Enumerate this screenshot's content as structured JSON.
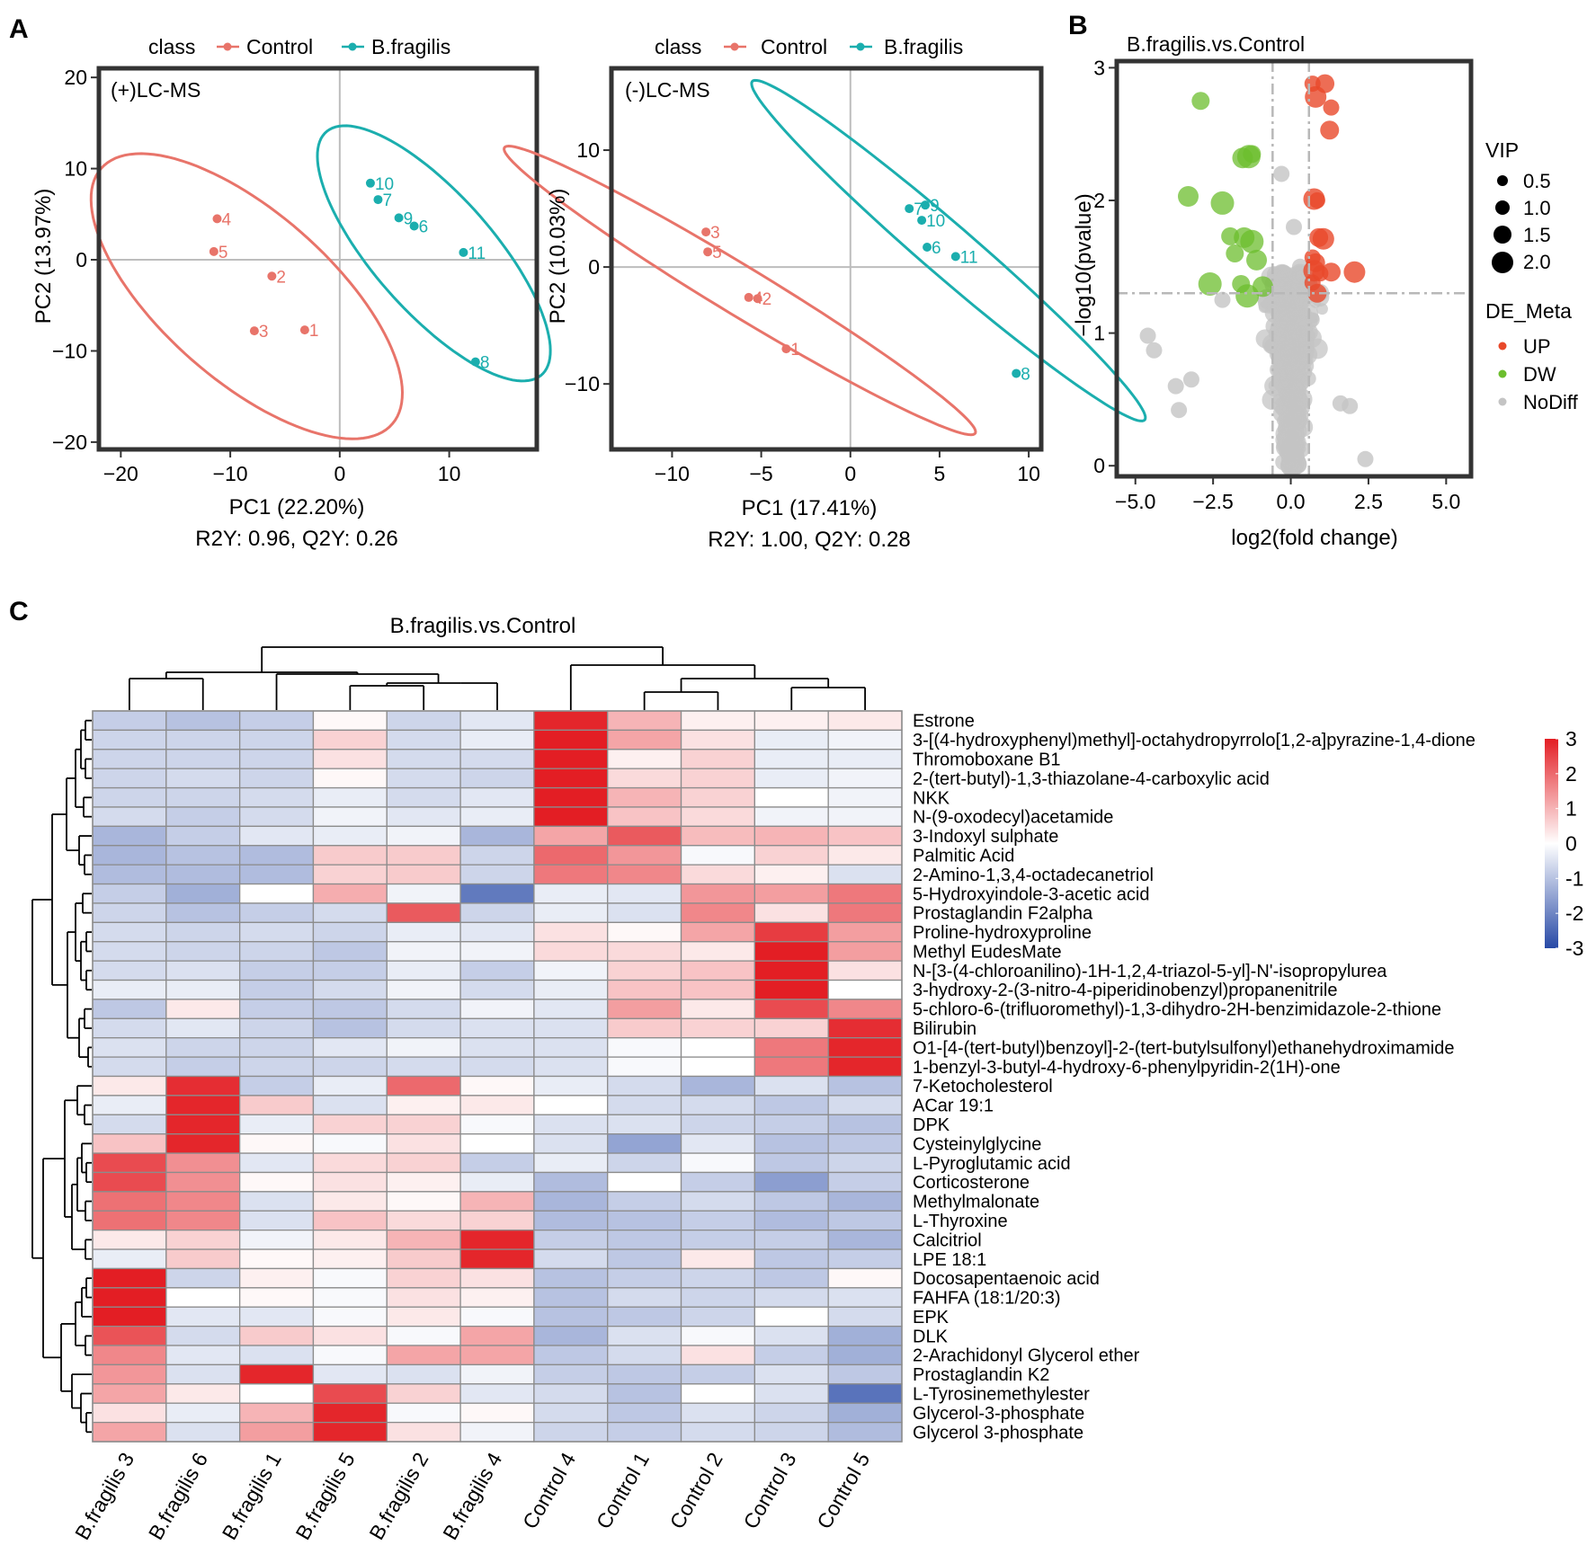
{
  "panel_labels": {
    "a": "A",
    "b": "B",
    "c": "C"
  },
  "colors": {
    "control": "#E8746A",
    "bfragilis": "#1BAEAE",
    "up": "#E8492A",
    "dw": "#6CBE2E",
    "nodiff": "#C4C4C4",
    "guide": "#B8B8B8",
    "heat_low": "#2749A6",
    "heat_mid": "#FFFFFF",
    "heat_high": "#E31E24"
  },
  "chart_data": [
    {
      "type": "scatter",
      "id": "pca_pos",
      "legend_title": "class",
      "legend": [
        "Control",
        "B.fragilis"
      ],
      "inset_label": "(+)LC-MS",
      "xlabel": "PC1 (22.20%)",
      "ylabel": "PC2 (13.97%)",
      "subtitle": "R2Y: 0.96, Q2Y: 0.26",
      "xlim": [
        -22,
        18
      ],
      "ylim": [
        -20.8,
        21
      ],
      "xticks": [
        -20,
        -10,
        0,
        10
      ],
      "yticks": [
        -20,
        -10,
        0,
        10,
        20
      ],
      "series": [
        {
          "name": "Control",
          "points": [
            {
              "label": "4",
              "x": -11.2,
              "y": 4.5
            },
            {
              "label": "5",
              "x": -11.5,
              "y": 0.9
            },
            {
              "label": "2",
              "x": -6.2,
              "y": -1.8
            },
            {
              "label": "3",
              "x": -7.8,
              "y": -7.8
            },
            {
              "label": "1",
              "x": -3.2,
              "y": -7.7
            }
          ]
        },
        {
          "name": "B.fragilis",
          "points": [
            {
              "label": "10",
              "x": 2.8,
              "y": 8.4
            },
            {
              "label": "7",
              "x": 3.5,
              "y": 6.6
            },
            {
              "label": "9",
              "x": 5.4,
              "y": 4.6
            },
            {
              "label": "6",
              "x": 6.8,
              "y": 3.7
            },
            {
              "label": "11",
              "x": 11.3,
              "y": 0.8
            },
            {
              "label": "8",
              "x": 12.4,
              "y": -11.2
            }
          ]
        }
      ],
      "ellipses": [
        {
          "series": "Control",
          "center": [
            -8.5,
            -4.0
          ],
          "semi_axes": [
            19.4,
            8.4
          ],
          "angle_deg": -49
        },
        {
          "series": "B.fragilis",
          "center": [
            8.6,
            0.7
          ],
          "semi_axes": [
            16.6,
            5.8
          ],
          "angle_deg": -55
        }
      ]
    },
    {
      "type": "scatter",
      "id": "pca_neg",
      "legend_title": "class",
      "legend": [
        "Control",
        "B.fragilis"
      ],
      "inset_label": "(-)LC-MS",
      "xlabel": "PC1 (17.41%)",
      "ylabel": "PC2 (10.03%)",
      "subtitle": "R2Y: 1.00, Q2Y: 0.28",
      "xlim": [
        -13.4,
        10.7
      ],
      "ylim": [
        -15.6,
        17
      ],
      "xticks": [
        -10,
        -5,
        0,
        5,
        10
      ],
      "yticks": [
        -10,
        0,
        10
      ],
      "series": [
        {
          "name": "Control",
          "points": [
            {
              "label": "3",
              "x": -8.1,
              "y": 3.0
            },
            {
              "label": "5",
              "x": -8.0,
              "y": 1.3
            },
            {
              "label": "4",
              "x": -5.7,
              "y": -2.6
            },
            {
              "label": "2",
              "x": -5.2,
              "y": -2.7
            },
            {
              "label": "1",
              "x": -3.6,
              "y": -7.0
            }
          ]
        },
        {
          "name": "B.fragilis",
          "points": [
            {
              "label": "7",
              "x": 3.3,
              "y": 5.0
            },
            {
              "label": "9",
              "x": 4.2,
              "y": 5.3
            },
            {
              "label": "10",
              "x": 4.0,
              "y": 4.0
            },
            {
              "label": "6",
              "x": 4.3,
              "y": 1.7
            },
            {
              "label": "11",
              "x": 5.9,
              "y": 0.9
            },
            {
              "label": "8",
              "x": 9.3,
              "y": -9.1
            }
          ]
        }
      ],
      "ellipses": [
        {
          "series": "Control",
          "center": [
            -6.2,
            -2.0
          ],
          "semi_axes": [
            18.0,
            1.8
          ],
          "angle_deg": -43
        },
        {
          "series": "B.fragilis",
          "center": [
            5.5,
            1.4
          ],
          "semi_axes": [
            18.2,
            1.75
          ],
          "angle_deg": -53
        }
      ]
    },
    {
      "type": "scatter",
      "id": "volcano",
      "title": "B.fragilis.vs.Control",
      "xlabel": "log2(fold change)",
      "ylabel": "−log10(pvalue)",
      "xlim": [
        -5.6,
        5.8
      ],
      "ylim": [
        -0.08,
        3.05
      ],
      "xticks": [
        -5.0,
        -2.5,
        0.0,
        2.5,
        5.0
      ],
      "xtick_labels": [
        "−5.0",
        "−2.5",
        "0.0",
        "2.5",
        "5.0"
      ],
      "yticks": [
        0,
        1,
        2,
        3
      ],
      "thresholds": {
        "x": [
          -0.585,
          0.585
        ],
        "y": 1.3
      },
      "size_legend_title": "VIP",
      "size_legend": [
        "0.5",
        "1.0",
        "1.5",
        "2.0"
      ],
      "color_legend_title": "DE_Meta",
      "color_legend": [
        "UP",
        "DW",
        "NoDiff"
      ],
      "up": [
        [
          0.7,
          2.88
        ],
        [
          1.1,
          2.88
        ],
        [
          0.8,
          2.78
        ],
        [
          1.3,
          2.7
        ],
        [
          1.25,
          2.53
        ],
        [
          0.75,
          2.01
        ],
        [
          0.85,
          2.0
        ],
        [
          0.9,
          1.72
        ],
        [
          1.05,
          1.71
        ],
        [
          0.7,
          1.57
        ],
        [
          0.8,
          1.53
        ],
        [
          0.75,
          1.47
        ],
        [
          0.95,
          1.45
        ],
        [
          1.3,
          1.46
        ],
        [
          2.05,
          1.46
        ],
        [
          0.7,
          1.38
        ],
        [
          0.85,
          1.3
        ]
      ],
      "dw": [
        [
          -2.9,
          2.75
        ],
        [
          -1.55,
          2.32
        ],
        [
          -1.35,
          2.33
        ],
        [
          -1.25,
          2.35
        ],
        [
          -3.3,
          2.03
        ],
        [
          -2.2,
          1.98
        ],
        [
          -1.95,
          1.73
        ],
        [
          -1.5,
          1.72
        ],
        [
          -1.25,
          1.69
        ],
        [
          -1.8,
          1.6
        ],
        [
          -1.1,
          1.55
        ],
        [
          -2.6,
          1.37
        ],
        [
          -1.6,
          1.37
        ],
        [
          -0.9,
          1.35
        ],
        [
          -1.4,
          1.28
        ]
      ],
      "nodiff_note": "dense gray cloud centered at log2FC 0"
    },
    {
      "type": "heatmap",
      "id": "heatmap",
      "title": "B.fragilis.vs.Control",
      "columns": [
        "B.fragilis 3",
        "B.fragilis 6",
        "B.fragilis 1",
        "B.fragilis 5",
        "B.fragilis 2",
        "B.fragilis 4",
        "Control 4",
        "Control 1",
        "Control 2",
        "Control 3",
        "Control 5"
      ],
      "rows": [
        "Estrone",
        "3-[(4-hydroxyphenyl)methyl]-octahydropyrrolo[1,2-a]pyrazine-1,4-dione",
        "Thromoboxane B1",
        "2-(tert-butyl)-1,3-thiazolane-4-carboxylic acid",
        "NKK",
        "N-(9-oxodecyl)acetamide",
        "3-Indoxyl sulphate",
        "Palmitic Acid",
        "2-Amino-1,3,4-octadecanetriol",
        "5-Hydroxyindole-3-acetic acid",
        "Prostaglandin F2alpha",
        "Proline-hydroxyproline",
        "Methyl EudesMate",
        "N-[3-(4-chloroanilino)-1H-1,2,4-triazol-5-yl]-N'-isopropylurea",
        "3-hydroxy-2-(3-nitro-4-piperidinobenzyl)propanenitrile",
        "5-chloro-6-(trifluoromethyl)-1,3-dihydro-2H-benzimidazole-2-thione",
        "Bilirubin",
        "O1-[4-(tert-butyl)benzoyl]-2-(tert-butylsulfonyl)ethanehydroximamide",
        "1-benzyl-3-butyl-4-hydroxy-6-phenylpyridin-2(1H)-one",
        "7-Ketocholesterol",
        "ACar 19:1",
        "DPK",
        "Cysteinylglycine",
        "L-Pyroglutamic acid",
        "Corticosterone",
        "Methylmalonate",
        "L-Thyroxine",
        "Calcitriol",
        "LPE 18:1",
        "Docosapentaenoic acid",
        "FAHFA (18:1/20:3)",
        "EPK",
        "DLK",
        "2-Arachidonyl Glycerol ether",
        "Prostaglandin K2",
        "L-Tyrosinemethylester",
        "Glycerol-3-phosphate",
        "Glycerol 3-phosphate"
      ],
      "values": [
        [
          -0.8,
          -1.0,
          -0.8,
          0.1,
          -0.7,
          -0.4,
          2.9,
          1.0,
          0.2,
          0.2,
          0.3
        ],
        [
          -0.7,
          -0.7,
          -0.7,
          0.6,
          -0.6,
          -0.3,
          3.0,
          1.2,
          0.4,
          -0.3,
          -0.2
        ],
        [
          -0.7,
          -0.7,
          -0.7,
          0.4,
          -0.6,
          -0.6,
          3.0,
          0.2,
          0.6,
          -0.3,
          -0.3
        ],
        [
          -0.7,
          -0.6,
          -0.7,
          0.1,
          -0.6,
          -0.7,
          3.0,
          0.5,
          0.6,
          -0.3,
          -0.2
        ],
        [
          -0.7,
          -0.7,
          -0.6,
          -0.3,
          -0.6,
          -0.4,
          3.0,
          1.0,
          0.6,
          0.0,
          -0.2
        ],
        [
          -0.6,
          -0.8,
          -0.6,
          -0.2,
          -0.4,
          -0.3,
          3.0,
          0.8,
          0.5,
          -0.2,
          -0.2
        ],
        [
          -1.2,
          -0.8,
          -0.4,
          -0.3,
          -0.2,
          -1.2,
          1.2,
          2.2,
          0.9,
          1.0,
          0.8
        ],
        [
          -1.2,
          -1.0,
          -1.1,
          0.7,
          0.7,
          -0.7,
          2.0,
          1.4,
          -0.1,
          0.6,
          0.3
        ],
        [
          -1.1,
          -1.1,
          -1.1,
          0.6,
          0.7,
          -0.7,
          1.8,
          1.6,
          0.5,
          0.2,
          -0.5
        ],
        [
          -0.8,
          -1.3,
          0.0,
          1.1,
          -0.2,
          -2.2,
          -0.3,
          -0.4,
          1.4,
          1.3,
          1.8
        ],
        [
          -0.7,
          -1.0,
          -0.8,
          -0.6,
          2.2,
          -0.7,
          -0.3,
          -0.5,
          1.6,
          0.4,
          1.8
        ],
        [
          -0.6,
          -0.7,
          -0.6,
          -0.7,
          -0.3,
          -0.4,
          0.4,
          0.1,
          1.2,
          2.6,
          1.3
        ],
        [
          -0.6,
          -0.7,
          -0.7,
          -0.9,
          -0.2,
          -0.2,
          0.5,
          0.5,
          0.3,
          3.0,
          1.3
        ],
        [
          -0.6,
          -0.5,
          -0.8,
          -0.8,
          -0.3,
          -0.8,
          -0.2,
          0.6,
          0.8,
          3.0,
          0.4
        ],
        [
          -0.3,
          -0.3,
          -0.8,
          -0.6,
          -0.2,
          -0.6,
          -0.3,
          0.8,
          0.8,
          3.0,
          0.0
        ],
        [
          -0.9,
          0.3,
          -0.8,
          -0.9,
          -0.6,
          -0.2,
          -0.4,
          1.3,
          0.3,
          2.4,
          1.6
        ],
        [
          -0.6,
          -0.4,
          -0.7,
          -1.0,
          -0.6,
          -0.5,
          -0.5,
          0.7,
          0.6,
          0.6,
          2.8
        ],
        [
          -0.5,
          -0.7,
          -0.7,
          -0.4,
          -0.2,
          -0.5,
          -0.5,
          -0.1,
          0.0,
          1.8,
          2.9
        ],
        [
          -0.6,
          -0.8,
          -0.7,
          -0.7,
          -0.6,
          -0.6,
          -0.5,
          -0.1,
          0.0,
          1.8,
          2.9
        ],
        [
          0.3,
          2.8,
          -0.8,
          -0.3,
          2.0,
          0.1,
          -0.3,
          -0.6,
          -1.2,
          -0.5,
          -1.0
        ],
        [
          -0.3,
          2.9,
          0.7,
          -0.5,
          0.2,
          0.3,
          0.0,
          -0.6,
          -0.6,
          -0.9,
          -0.6
        ],
        [
          -0.6,
          2.9,
          -0.3,
          0.6,
          0.6,
          -0.1,
          -0.5,
          -0.5,
          -0.7,
          -0.8,
          -1.0
        ],
        [
          0.8,
          2.9,
          0.1,
          -0.1,
          0.4,
          0.0,
          -0.5,
          -1.5,
          -0.4,
          -1.0,
          -0.9
        ],
        [
          2.4,
          1.5,
          -0.4,
          0.5,
          0.6,
          -0.8,
          -0.3,
          -0.7,
          -0.1,
          -0.9,
          -0.7
        ],
        [
          2.4,
          1.5,
          0.1,
          0.4,
          0.2,
          -0.3,
          -1.1,
          0.0,
          -0.8,
          -1.6,
          -0.8
        ],
        [
          1.9,
          1.6,
          -0.5,
          0.3,
          0.1,
          1.0,
          -1.2,
          -0.8,
          -0.6,
          -0.9,
          -1.2
        ],
        [
          1.9,
          1.6,
          -0.5,
          0.8,
          0.5,
          0.6,
          -1.1,
          -1.0,
          -0.8,
          -1.1,
          -0.9
        ],
        [
          0.3,
          0.6,
          -0.2,
          0.3,
          1.0,
          2.9,
          -0.8,
          -0.9,
          -0.8,
          -0.8,
          -1.2
        ],
        [
          -0.3,
          0.7,
          0.1,
          0.2,
          0.7,
          2.9,
          -0.6,
          -0.9,
          0.3,
          -0.9,
          -0.8
        ],
        [
          3.0,
          -0.7,
          0.2,
          -0.1,
          0.6,
          0.4,
          -1.0,
          -0.8,
          -0.7,
          -0.9,
          0.1
        ],
        [
          3.0,
          0.0,
          0.1,
          -0.1,
          0.4,
          0.2,
          -1.0,
          -0.6,
          -0.7,
          -0.6,
          -0.5
        ],
        [
          3.0,
          -0.4,
          -0.4,
          -0.1,
          0.3,
          -0.1,
          -1.0,
          -0.9,
          -0.7,
          0.0,
          -0.6
        ],
        [
          2.3,
          -0.6,
          0.7,
          0.4,
          -0.1,
          1.2,
          -1.2,
          -0.5,
          -0.1,
          -0.5,
          -1.3
        ],
        [
          1.6,
          -0.4,
          -0.5,
          -0.1,
          1.2,
          1.2,
          -0.9,
          -0.6,
          0.4,
          -0.8,
          -1.3
        ],
        [
          1.4,
          -0.5,
          2.9,
          -0.4,
          -0.5,
          -0.2,
          -0.8,
          -0.9,
          -0.8,
          -0.5,
          -0.9
        ],
        [
          1.2,
          0.3,
          0.0,
          2.4,
          0.6,
          -0.4,
          -0.6,
          -1.0,
          0.0,
          -0.5,
          -2.3
        ],
        [
          0.4,
          -0.3,
          1.0,
          2.9,
          -0.1,
          0.1,
          -0.6,
          -0.9,
          -0.5,
          -0.7,
          -1.3
        ],
        [
          1.2,
          -0.5,
          1.3,
          2.9,
          0.4,
          -0.2,
          -0.7,
          -0.8,
          -0.6,
          -0.7,
          -1.1
        ]
      ],
      "colorbar_ticks": [
        3,
        2,
        1,
        0,
        -1,
        -2,
        -3
      ],
      "colorbar_tick_labels": [
        "3",
        "2",
        "1",
        "0",
        "-1",
        "-2",
        "-3"
      ],
      "vmin": -3,
      "vmax": 3
    }
  ]
}
